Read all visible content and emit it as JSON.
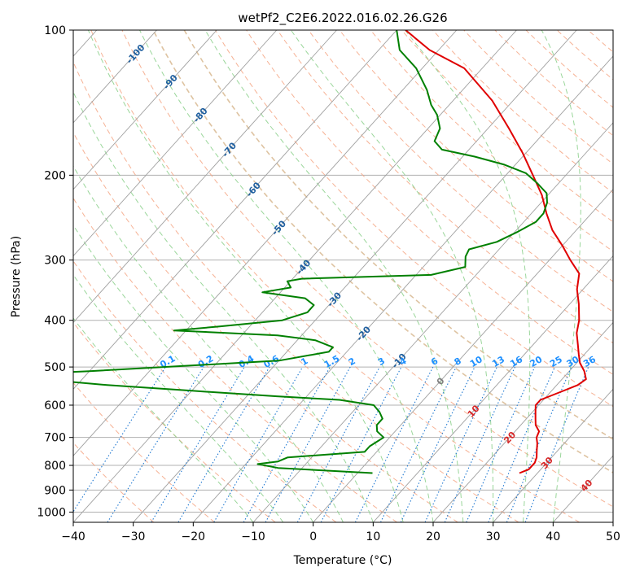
{
  "chart_data": {
    "type": "line",
    "title": "wetPf2_C2E6.2022.016.02.26.G26",
    "xlabel": "Temperature (°C)",
    "ylabel": "Pressure (hPa)",
    "xlim": [
      -40,
      50
    ],
    "ylim": [
      1050,
      100
    ],
    "y_scale": "log",
    "grid": true,
    "x_ticks": [
      "−40",
      "−30",
      "−20",
      "−10",
      "0",
      "10",
      "20",
      "30",
      "40",
      "50"
    ],
    "y_ticks": [
      {
        "p": 100,
        "label": "100"
      },
      {
        "p": 200,
        "label": "200"
      },
      {
        "p": 300,
        "label": "300"
      },
      {
        "p": 400,
        "label": "400"
      },
      {
        "p": 500,
        "label": "500"
      },
      {
        "p": 600,
        "label": "600"
      },
      {
        "p": 700,
        "label": "700"
      },
      {
        "p": 800,
        "label": "800"
      },
      {
        "p": 900,
        "label": "900"
      },
      {
        "p": 1000,
        "label": "1000"
      }
    ],
    "skew_isotherm_labels": [
      {
        "t": -100,
        "label": "-100"
      },
      {
        "t": -90,
        "label": "-90"
      },
      {
        "t": -80,
        "label": "-80"
      },
      {
        "t": -70,
        "label": "-70"
      },
      {
        "t": -60,
        "label": "-60"
      },
      {
        "t": -50,
        "label": "-50"
      },
      {
        "t": -40,
        "label": "-40"
      },
      {
        "t": -30,
        "label": "-30"
      },
      {
        "t": -20,
        "label": "-20"
      },
      {
        "t": -10,
        "label": "-10"
      },
      {
        "t": 0,
        "label": "0"
      },
      {
        "t": 10,
        "label": "10"
      },
      {
        "t": 20,
        "label": "20"
      },
      {
        "t": 30,
        "label": "30"
      },
      {
        "t": 40,
        "label": "40"
      }
    ],
    "mixing_ratio_labels": [
      "0.1",
      "0.2",
      "0.4",
      "0.6",
      "1",
      "1.5",
      "2",
      "3",
      "4",
      "6",
      "8",
      "10",
      "13",
      "16",
      "20",
      "25",
      "30",
      "36"
    ],
    "mixing_ratios_gkg": [
      0.1,
      0.2,
      0.4,
      0.6,
      1,
      1.5,
      2,
      3,
      4,
      6,
      8,
      10,
      13,
      16,
      20,
      25,
      30,
      36
    ],
    "colors": {
      "temperature": "#e00000",
      "dewpoint": "#008000",
      "isotherm": "#a0a0a0",
      "dry_adiabat": "#f4a582",
      "moist_adiabat": "#8fd18f",
      "mixing_ratio": "#1f78d1",
      "isotherm_label_cold": "#1f5f9f",
      "isotherm_label_warm": "#d62728",
      "mixing_label": "#1e90ff"
    },
    "series": [
      {
        "role": "temperature",
        "points": [
          [
            27.0,
            830
          ],
          [
            28.0,
            815
          ],
          [
            28.0,
            790
          ],
          [
            27.5,
            770
          ],
          [
            26.5,
            745
          ],
          [
            25.5,
            720
          ],
          [
            24.5,
            700
          ],
          [
            24.0,
            680
          ],
          [
            22.5,
            660
          ],
          [
            21.5,
            640
          ],
          [
            20.5,
            620
          ],
          [
            19.5,
            600
          ],
          [
            19.5,
            585
          ],
          [
            21.5,
            565
          ],
          [
            23.5,
            545
          ],
          [
            24.0,
            530
          ],
          [
            22.5,
            510
          ],
          [
            20.5,
            490
          ],
          [
            19.0,
            470
          ],
          [
            17.5,
            450
          ],
          [
            15.5,
            425
          ],
          [
            14.0,
            400
          ],
          [
            11.5,
            370
          ],
          [
            9.0,
            345
          ],
          [
            7.0,
            320
          ],
          [
            3.5,
            300
          ],
          [
            0.0,
            280
          ],
          [
            -4.0,
            260
          ],
          [
            -7.5,
            240
          ],
          [
            -11.0,
            220
          ],
          [
            -15.5,
            200
          ],
          [
            -20.5,
            180
          ],
          [
            -26.5,
            160
          ],
          [
            -33.5,
            140
          ],
          [
            -43.0,
            120
          ],
          [
            -51.5,
            110
          ],
          [
            -58.5,
            100
          ]
        ]
      },
      {
        "role": "dewpoint",
        "points": [
          [
            2.5,
            830
          ],
          [
            -14.0,
            810
          ],
          [
            -18.0,
            795
          ],
          [
            -15.0,
            785
          ],
          [
            -14.0,
            770
          ],
          [
            -2.0,
            750
          ],
          [
            -2.0,
            730
          ],
          [
            -1.5,
            715
          ],
          [
            -1.0,
            700
          ],
          [
            -3.0,
            680
          ],
          [
            -4.0,
            660
          ],
          [
            -4.0,
            640
          ],
          [
            -5.5,
            620
          ],
          [
            -7.5,
            600
          ],
          [
            -14.0,
            585
          ],
          [
            -25.0,
            575
          ],
          [
            -40.0,
            560
          ],
          [
            -55.0,
            545
          ],
          [
            -75.0,
            520
          ],
          [
            -60.0,
            510
          ],
          [
            -30.0,
            485
          ],
          [
            -23.0,
            465
          ],
          [
            -23.0,
            455
          ],
          [
            -27.0,
            440
          ],
          [
            -34.0,
            430
          ],
          [
            -52.0,
            420
          ],
          [
            -45.0,
            412
          ],
          [
            -35.5,
            400
          ],
          [
            -32.5,
            385
          ],
          [
            -32.5,
            372
          ],
          [
            -35.0,
            360
          ],
          [
            -43.0,
            350
          ],
          [
            -39.0,
            342
          ],
          [
            -40.5,
            332
          ],
          [
            -38.5,
            328
          ],
          [
            -17.5,
            322
          ],
          [
            -13.0,
            310
          ],
          [
            -14.5,
            295
          ],
          [
            -15.0,
            285
          ],
          [
            -11.5,
            275
          ],
          [
            -9.5,
            262
          ],
          [
            -8.0,
            250
          ],
          [
            -8.0,
            240
          ],
          [
            -9.0,
            228
          ],
          [
            -10.5,
            218
          ],
          [
            -13.5,
            208
          ],
          [
            -17.0,
            198
          ],
          [
            -22.0,
            190
          ],
          [
            -28.0,
            183
          ],
          [
            -34.5,
            177
          ],
          [
            -37.0,
            170
          ],
          [
            -38.0,
            160
          ],
          [
            -40.5,
            150
          ],
          [
            -43.0,
            143
          ],
          [
            -46.0,
            133
          ],
          [
            -51.0,
            120
          ],
          [
            -56.5,
            110
          ],
          [
            -60.0,
            100
          ]
        ]
      }
    ]
  }
}
